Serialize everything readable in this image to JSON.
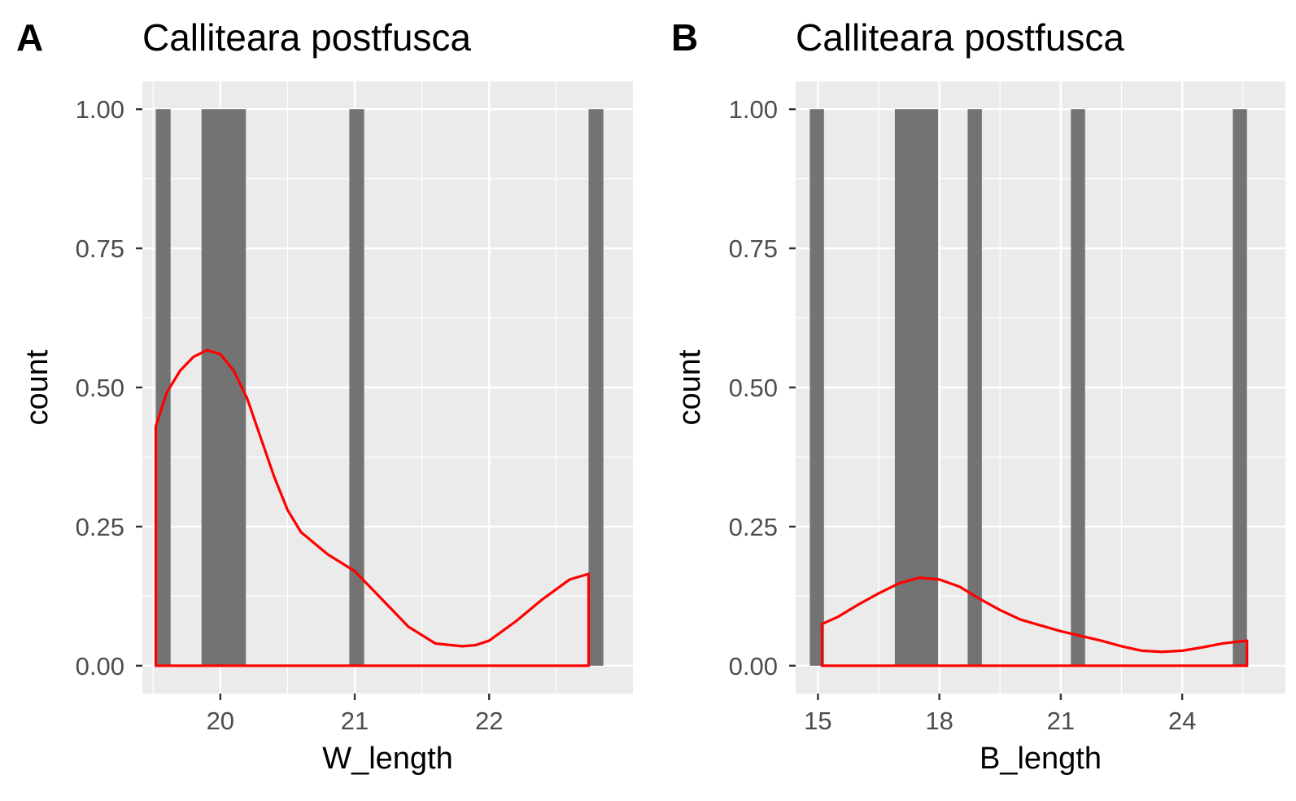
{
  "chart_data": [
    {
      "panel": "A",
      "type": "bar",
      "title": "Calliteara postfusca",
      "xlabel": "W_length",
      "ylabel": "count",
      "xlim": [
        19.42,
        23.07
      ],
      "ylim": [
        -0.05,
        1.05
      ],
      "xticks": [
        20,
        21,
        22
      ],
      "yticks": [
        0,
        0.25,
        0.5,
        0.75,
        1.0
      ],
      "ytick_labels": [
        "0.00",
        "0.25",
        "0.50",
        "0.75",
        "1.00"
      ],
      "grid": true,
      "bars": [
        {
          "x0": 19.52,
          "x1": 19.63,
          "count": 1
        },
        {
          "x0": 19.86,
          "x1": 20.19,
          "count": 1
        },
        {
          "x0": 20.96,
          "x1": 21.07,
          "count": 1
        },
        {
          "x0": 22.74,
          "x1": 22.85,
          "count": 1
        }
      ],
      "density": {
        "color": "#ff0000",
        "x": [
          19.52,
          19.6,
          19.7,
          19.8,
          19.9,
          20.0,
          20.1,
          20.2,
          20.3,
          20.4,
          20.5,
          20.6,
          20.8,
          21.0,
          21.2,
          21.4,
          21.6,
          21.8,
          21.9,
          22.0,
          22.2,
          22.4,
          22.6,
          22.74
        ],
        "y": [
          0.43,
          0.49,
          0.53,
          0.555,
          0.567,
          0.56,
          0.53,
          0.48,
          0.41,
          0.34,
          0.28,
          0.24,
          0.2,
          0.17,
          0.12,
          0.07,
          0.04,
          0.035,
          0.037,
          0.045,
          0.08,
          0.12,
          0.155,
          0.165
        ]
      }
    },
    {
      "panel": "B",
      "type": "bar",
      "title": "Calliteara postfusca",
      "xlabel": "B_length",
      "ylabel": "count",
      "xlim": [
        14.45,
        26.55
      ],
      "ylim": [
        -0.05,
        1.05
      ],
      "xticks": [
        15,
        18,
        21,
        24
      ],
      "yticks": [
        0,
        0.25,
        0.5,
        0.75,
        1.0
      ],
      "ytick_labels": [
        "0.00",
        "0.25",
        "0.50",
        "0.75",
        "1.00"
      ],
      "grid": true,
      "bars": [
        {
          "x0": 14.8,
          "x1": 15.15,
          "count": 1
        },
        {
          "x0": 16.9,
          "x1": 17.97,
          "count": 1
        },
        {
          "x0": 18.7,
          "x1": 19.05,
          "count": 1
        },
        {
          "x0": 21.25,
          "x1": 21.6,
          "count": 1
        },
        {
          "x0": 25.25,
          "x1": 25.6,
          "count": 1
        }
      ],
      "density": {
        "color": "#ff0000",
        "x": [
          15.1,
          15.5,
          16.0,
          16.5,
          17.0,
          17.5,
          18.0,
          18.5,
          19.0,
          19.5,
          20.0,
          21.0,
          22.0,
          22.5,
          23.0,
          23.5,
          24.0,
          24.5,
          25.0,
          25.6
        ],
        "y": [
          0.075,
          0.088,
          0.11,
          0.13,
          0.148,
          0.158,
          0.155,
          0.142,
          0.12,
          0.1,
          0.083,
          0.062,
          0.045,
          0.035,
          0.027,
          0.025,
          0.027,
          0.033,
          0.04,
          0.045
        ]
      }
    }
  ]
}
